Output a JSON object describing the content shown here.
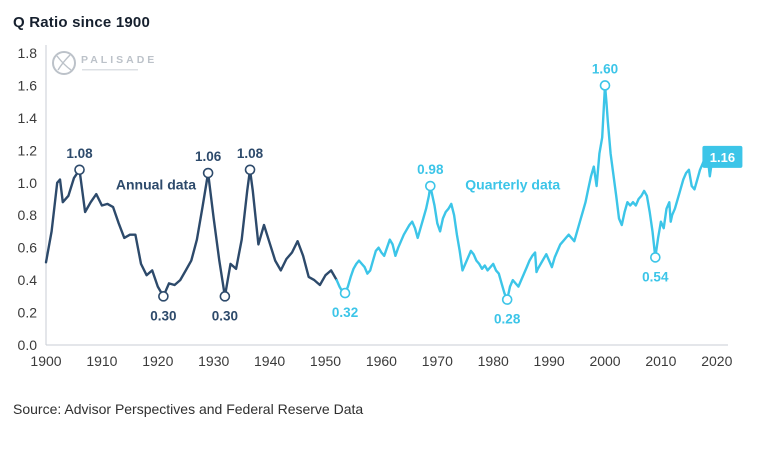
{
  "page": {
    "title": "Q Ratio since 1900",
    "source": "Source: Advisor Perspectives and Federal Reserve Data"
  },
  "watermark": {
    "brand": "PALISADE"
  },
  "colors": {
    "annual": "#2d4a6b",
    "quarterly": "#3cc5e8",
    "axis_line": "#c9ced4",
    "tick_text": "#3b3b3b",
    "watermark": "#bcc2c9",
    "end_box_text": "#ffffff",
    "background": "#ffffff"
  },
  "chart_data": {
    "type": "line",
    "title": "Q Ratio since 1900",
    "xlabel": "",
    "ylabel": "",
    "xlim": [
      1900,
      2022
    ],
    "ylim": [
      0.0,
      1.8
    ],
    "grid": false,
    "legend": "inline-labels",
    "x_ticks": [
      1900,
      1910,
      1920,
      1930,
      1940,
      1950,
      1960,
      1970,
      1980,
      1990,
      2000,
      2010,
      2020
    ],
    "y_ticks": [
      0,
      0.2,
      0.4,
      0.6,
      0.8,
      1,
      1.2,
      1.4,
      1.6,
      1.8
    ],
    "series": [
      {
        "name": "Annual data",
        "color_key": "annual",
        "points": [
          [
            1900,
            0.51
          ],
          [
            1901,
            0.7
          ],
          [
            1901.5,
            0.85
          ],
          [
            1902,
            1.0
          ],
          [
            1902.5,
            1.02
          ],
          [
            1903,
            0.88
          ],
          [
            1904,
            0.92
          ],
          [
            1905,
            1.03
          ],
          [
            1906,
            1.08
          ],
          [
            1906.5,
            0.95
          ],
          [
            1907,
            0.82
          ],
          [
            1908,
            0.88
          ],
          [
            1909,
            0.93
          ],
          [
            1910,
            0.86
          ],
          [
            1911,
            0.87
          ],
          [
            1912,
            0.85
          ],
          [
            1913,
            0.75
          ],
          [
            1914,
            0.66
          ],
          [
            1915,
            0.68
          ],
          [
            1916,
            0.68
          ],
          [
            1917,
            0.5
          ],
          [
            1918,
            0.43
          ],
          [
            1919,
            0.46
          ],
          [
            1920,
            0.36
          ],
          [
            1921,
            0.3
          ],
          [
            1922,
            0.38
          ],
          [
            1923,
            0.37
          ],
          [
            1924,
            0.4
          ],
          [
            1925,
            0.46
          ],
          [
            1926,
            0.52
          ],
          [
            1927,
            0.65
          ],
          [
            1928,
            0.85
          ],
          [
            1929,
            1.06
          ],
          [
            1930,
            0.78
          ],
          [
            1931,
            0.52
          ],
          [
            1932,
            0.3
          ],
          [
            1933,
            0.5
          ],
          [
            1934,
            0.47
          ],
          [
            1935,
            0.65
          ],
          [
            1936,
            0.95
          ],
          [
            1936.5,
            1.08
          ],
          [
            1937,
            0.95
          ],
          [
            1938,
            0.62
          ],
          [
            1939,
            0.74
          ],
          [
            1940,
            0.63
          ],
          [
            1941,
            0.52
          ],
          [
            1942,
            0.46
          ],
          [
            1943,
            0.53
          ],
          [
            1944,
            0.57
          ],
          [
            1945,
            0.64
          ],
          [
            1946,
            0.55
          ],
          [
            1947,
            0.42
          ],
          [
            1948,
            0.4
          ],
          [
            1949,
            0.37
          ],
          [
            1950,
            0.43
          ],
          [
            1951,
            0.46
          ],
          [
            1952,
            0.4
          ]
        ]
      },
      {
        "name": "Quarterly data",
        "color_key": "quarterly",
        "points": [
          [
            1952,
            0.4
          ],
          [
            1952.5,
            0.36
          ],
          [
            1953,
            0.33
          ],
          [
            1953.5,
            0.32
          ],
          [
            1954,
            0.36
          ],
          [
            1954.5,
            0.42
          ],
          [
            1955,
            0.47
          ],
          [
            1955.5,
            0.5
          ],
          [
            1956,
            0.52
          ],
          [
            1956.5,
            0.5
          ],
          [
            1957,
            0.48
          ],
          [
            1957.5,
            0.44
          ],
          [
            1958,
            0.46
          ],
          [
            1958.5,
            0.52
          ],
          [
            1959,
            0.58
          ],
          [
            1959.5,
            0.6
          ],
          [
            1960,
            0.57
          ],
          [
            1960.5,
            0.55
          ],
          [
            1961,
            0.6
          ],
          [
            1961.5,
            0.65
          ],
          [
            1962,
            0.62
          ],
          [
            1962.5,
            0.55
          ],
          [
            1963,
            0.6
          ],
          [
            1963.5,
            0.64
          ],
          [
            1964,
            0.68
          ],
          [
            1964.5,
            0.71
          ],
          [
            1965,
            0.74
          ],
          [
            1965.5,
            0.76
          ],
          [
            1966,
            0.72
          ],
          [
            1966.5,
            0.66
          ],
          [
            1967,
            0.72
          ],
          [
            1967.5,
            0.78
          ],
          [
            1968,
            0.84
          ],
          [
            1968.5,
            0.92
          ],
          [
            1968.75,
            0.98
          ],
          [
            1969,
            0.94
          ],
          [
            1969.5,
            0.86
          ],
          [
            1970,
            0.75
          ],
          [
            1970.5,
            0.7
          ],
          [
            1971,
            0.78
          ],
          [
            1971.5,
            0.82
          ],
          [
            1972,
            0.84
          ],
          [
            1972.5,
            0.87
          ],
          [
            1973,
            0.8
          ],
          [
            1973.5,
            0.68
          ],
          [
            1974,
            0.58
          ],
          [
            1974.5,
            0.46
          ],
          [
            1975,
            0.5
          ],
          [
            1975.5,
            0.54
          ],
          [
            1976,
            0.58
          ],
          [
            1976.5,
            0.56
          ],
          [
            1977,
            0.52
          ],
          [
            1977.5,
            0.5
          ],
          [
            1978,
            0.47
          ],
          [
            1978.5,
            0.49
          ],
          [
            1979,
            0.46
          ],
          [
            1979.5,
            0.48
          ],
          [
            1980,
            0.5
          ],
          [
            1980.5,
            0.46
          ],
          [
            1981,
            0.44
          ],
          [
            1981.5,
            0.38
          ],
          [
            1982,
            0.32
          ],
          [
            1982.5,
            0.28
          ],
          [
            1983,
            0.36
          ],
          [
            1983.5,
            0.4
          ],
          [
            1984,
            0.38
          ],
          [
            1984.5,
            0.36
          ],
          [
            1985,
            0.4
          ],
          [
            1985.5,
            0.44
          ],
          [
            1986,
            0.48
          ],
          [
            1986.5,
            0.52
          ],
          [
            1987,
            0.55
          ],
          [
            1987.5,
            0.57
          ],
          [
            1987.75,
            0.45
          ],
          [
            1988,
            0.47
          ],
          [
            1988.5,
            0.5
          ],
          [
            1989,
            0.53
          ],
          [
            1989.5,
            0.56
          ],
          [
            1990,
            0.52
          ],
          [
            1990.5,
            0.48
          ],
          [
            1991,
            0.54
          ],
          [
            1991.5,
            0.58
          ],
          [
            1992,
            0.62
          ],
          [
            1992.5,
            0.64
          ],
          [
            1993,
            0.66
          ],
          [
            1993.5,
            0.68
          ],
          [
            1994,
            0.66
          ],
          [
            1994.5,
            0.64
          ],
          [
            1995,
            0.7
          ],
          [
            1995.5,
            0.76
          ],
          [
            1996,
            0.82
          ],
          [
            1996.5,
            0.88
          ],
          [
            1997,
            0.96
          ],
          [
            1997.5,
            1.04
          ],
          [
            1998,
            1.1
          ],
          [
            1998.5,
            0.98
          ],
          [
            1999,
            1.18
          ],
          [
            1999.5,
            1.28
          ],
          [
            2000,
            1.6
          ],
          [
            2000.25,
            1.5
          ],
          [
            2000.5,
            1.38
          ],
          [
            2001,
            1.18
          ],
          [
            2001.5,
            1.05
          ],
          [
            2002,
            0.92
          ],
          [
            2002.5,
            0.78
          ],
          [
            2003,
            0.74
          ],
          [
            2003.5,
            0.82
          ],
          [
            2004,
            0.88
          ],
          [
            2004.5,
            0.86
          ],
          [
            2005,
            0.88
          ],
          [
            2005.5,
            0.86
          ],
          [
            2006,
            0.9
          ],
          [
            2006.5,
            0.92
          ],
          [
            2007,
            0.95
          ],
          [
            2007.5,
            0.92
          ],
          [
            2008,
            0.82
          ],
          [
            2008.5,
            0.7
          ],
          [
            2009,
            0.54
          ],
          [
            2009.5,
            0.66
          ],
          [
            2010,
            0.76
          ],
          [
            2010.5,
            0.72
          ],
          [
            2011,
            0.84
          ],
          [
            2011.5,
            0.88
          ],
          [
            2011.75,
            0.76
          ],
          [
            2012,
            0.8
          ],
          [
            2012.5,
            0.84
          ],
          [
            2013,
            0.9
          ],
          [
            2013.5,
            0.96
          ],
          [
            2014,
            1.02
          ],
          [
            2014.5,
            1.06
          ],
          [
            2015,
            1.08
          ],
          [
            2015.5,
            0.98
          ],
          [
            2016,
            0.96
          ],
          [
            2016.5,
            1.02
          ],
          [
            2017,
            1.08
          ],
          [
            2017.5,
            1.12
          ],
          [
            2018,
            1.16
          ],
          [
            2018.25,
            1.2
          ],
          [
            2018.75,
            1.04
          ],
          [
            2019,
            1.1
          ],
          [
            2019.5,
            1.16
          ]
        ]
      }
    ],
    "annotations": [
      {
        "x": 1906,
        "y": 1.08,
        "label": "1.08",
        "series": "annual",
        "position": "above"
      },
      {
        "x": 1921,
        "y": 0.3,
        "label": "0.30",
        "series": "annual",
        "position": "below"
      },
      {
        "x": 1929,
        "y": 1.06,
        "label": "1.06",
        "series": "annual",
        "position": "above"
      },
      {
        "x": 1932,
        "y": 0.3,
        "label": "0.30",
        "series": "annual",
        "position": "below"
      },
      {
        "x": 1936.5,
        "y": 1.08,
        "label": "1.08",
        "series": "annual",
        "position": "above"
      },
      {
        "x": 1953.5,
        "y": 0.32,
        "label": "0.32",
        "series": "quarterly",
        "position": "below"
      },
      {
        "x": 1968.75,
        "y": 0.98,
        "label": "0.98",
        "series": "quarterly",
        "position": "above"
      },
      {
        "x": 1982.5,
        "y": 0.28,
        "label": "0.28",
        "series": "quarterly",
        "position": "below"
      },
      {
        "x": 2000,
        "y": 1.6,
        "label": "1.60",
        "series": "quarterly",
        "position": "above"
      },
      {
        "x": 2009,
        "y": 0.54,
        "label": "0.54",
        "series": "quarterly",
        "position": "below"
      },
      {
        "x": 2021,
        "y": 1.16,
        "label": "1.16",
        "series": "quarterly",
        "style": "box"
      }
    ],
    "series_labels": [
      {
        "text": "Annual data",
        "x": 1912.5,
        "y": 0.96,
        "series": "annual"
      },
      {
        "text": "Quarterly data",
        "x": 1975,
        "y": 0.96,
        "series": "quarterly"
      }
    ]
  }
}
